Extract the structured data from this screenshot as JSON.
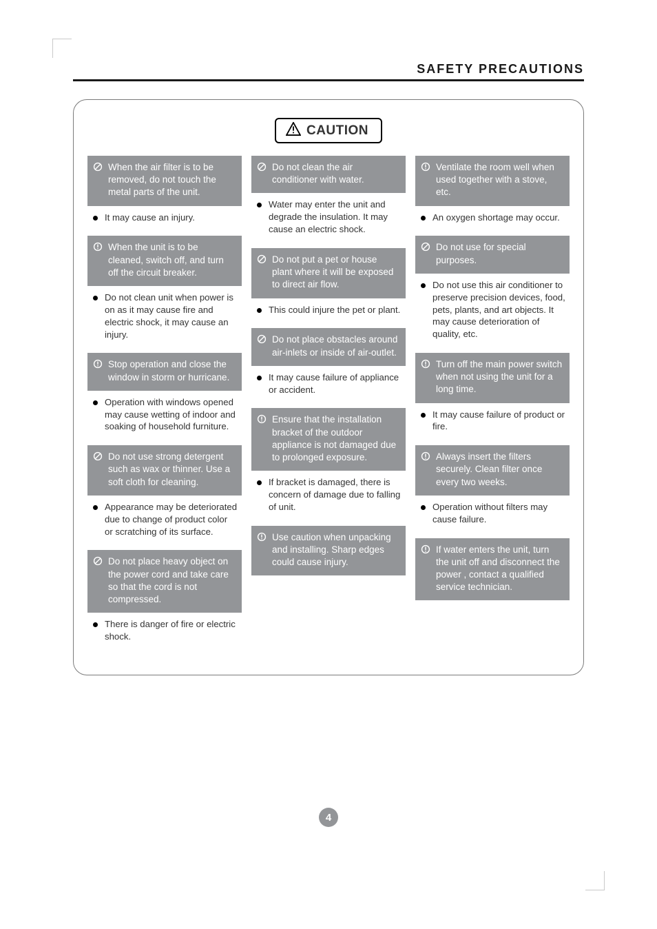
{
  "header": {
    "title": "SAFETY PRECAUTIONS"
  },
  "caution_label": "CAUTION",
  "page_number": "4",
  "icon_types": {
    "prohibit": "prohibit",
    "notice": "notice"
  },
  "colors": {
    "gray_block": "#939598",
    "text_dark": "#333333",
    "rule": "#1a1a1a"
  },
  "columns": [
    [
      {
        "icon": "prohibit",
        "title": "When the air filter is to be removed, do not touch the metal parts of the unit.",
        "body": "It may cause an injury."
      },
      {
        "icon": "notice",
        "title": "When the unit is to be cleaned, switch off, and turn off the circuit breaker.",
        "body": "Do not clean unit when power is on as it may cause fire and electric shock, it may cause an injury."
      },
      {
        "icon": "notice",
        "title": "Stop operation and close the window in storm or hurricane.",
        "body": "Operation with windows opened may cause wetting of indoor and soaking of household furniture."
      },
      {
        "icon": "prohibit",
        "title": "Do not use strong detergent such as wax or thinner. Use a soft cloth for cleaning.",
        "body": "Appearance may be deteriorated due to change of product color or scratching of its surface."
      },
      {
        "icon": "prohibit",
        "title": "Do not place heavy object on the power cord and take care so that the cord is not compressed.",
        "body": "There is danger of fire or electric shock."
      }
    ],
    [
      {
        "icon": "prohibit",
        "title": "Do not clean the air conditioner with water.",
        "body": "Water may enter the unit and degrade the insulation. It may cause an electric shock."
      },
      {
        "icon": "prohibit",
        "title": "Do not put a pet or house plant where it will be exposed to direct air flow.",
        "body": "This could injure the pet or plant."
      },
      {
        "icon": "prohibit",
        "title": "Do not place obstacles around air-inlets or inside of air-outlet.",
        "body": "It may cause failure of appliance or accident."
      },
      {
        "icon": "notice",
        "title": "Ensure that the installation bracket of the outdoor appliance is not damaged due to prolonged exposure.",
        "body": "If bracket is damaged, there is concern of damage due to falling of unit."
      },
      {
        "icon": "notice",
        "title": "Use caution when unpacking and installing. Sharp edges could cause injury.",
        "body": ""
      }
    ],
    [
      {
        "icon": "notice",
        "title": "Ventilate the room well when used together with a stove, etc.",
        "body": "An oxygen shortage may occur."
      },
      {
        "icon": "prohibit",
        "title": "Do not use for special purposes.",
        "body": "Do not use this air conditioner to preserve precision devices, food, pets, plants, and art objects. It may cause deterioration of quality, etc."
      },
      {
        "icon": "notice",
        "title": "Turn off the main power switch when not using the unit for a long time.",
        "body": "It may cause failure of product or fire."
      },
      {
        "icon": "notice",
        "title": "Always insert the filters securely. Clean filter once every two weeks.",
        "body": "Operation without filters may cause failure."
      },
      {
        "icon": "notice",
        "title": "If water enters the unit, turn the unit off and disconnect the power , contact a qualified service technician.",
        "body": ""
      }
    ]
  ]
}
